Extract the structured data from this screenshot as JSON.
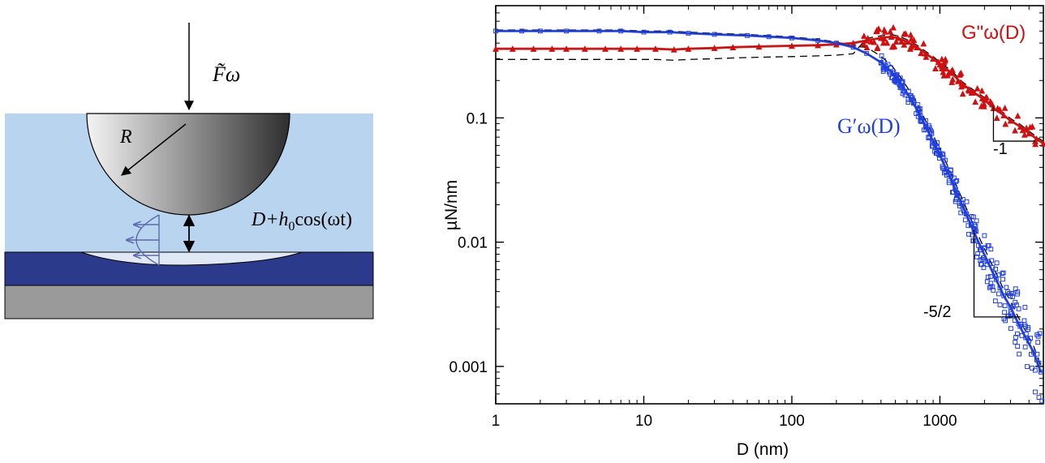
{
  "schematic": {
    "force_label": "F̃ω",
    "radius_label": "R",
    "gap_label_prefix": "D+h",
    "gap_label_sub": "0",
    "gap_label_suffix": "cos(ωt)",
    "colors": {
      "liquid": "#b9d4ef",
      "film": "#2c3a8c",
      "substrate": "#9a9a9a",
      "flow_arrows": "#5a6aa8"
    }
  },
  "chart_data": {
    "type": "scatter",
    "xscale": "log",
    "yscale": "log",
    "xlim": [
      1,
      5000
    ],
    "ylim": [
      0.0005,
      0.8
    ],
    "xticks": [
      1,
      10,
      100,
      1000
    ],
    "xtick_labels": [
      "1",
      "10",
      "100",
      "1000"
    ],
    "yticks": [
      0.001,
      0.01,
      0.1
    ],
    "ytick_labels": [
      "0.001",
      "0.01",
      "0.1"
    ],
    "xlabel": "D (nm)",
    "ylabel": "µN/nm",
    "grid": false,
    "series": [
      {
        "name": "G''ω(D)",
        "color": "#d01010",
        "marker": "triangle",
        "points": [
          [
            1,
            0.36
          ],
          [
            1.3,
            0.36
          ],
          [
            1.8,
            0.36
          ],
          [
            2.4,
            0.36
          ],
          [
            3,
            0.36
          ],
          [
            4,
            0.36
          ],
          [
            5.5,
            0.36
          ],
          [
            7,
            0.36
          ],
          [
            9,
            0.36
          ],
          [
            12,
            0.36
          ],
          [
            16,
            0.355
          ],
          [
            20,
            0.36
          ],
          [
            30,
            0.365
          ],
          [
            40,
            0.37
          ],
          [
            60,
            0.375
          ],
          [
            100,
            0.38
          ],
          [
            150,
            0.385
          ],
          [
            200,
            0.39
          ],
          [
            260,
            0.4
          ],
          [
            320,
            0.42
          ],
          [
            400,
            0.44
          ],
          [
            470,
            0.45
          ],
          [
            520,
            0.44
          ],
          [
            600,
            0.41
          ],
          [
            700,
            0.37
          ],
          [
            800,
            0.33
          ],
          [
            900,
            0.3
          ],
          [
            1000,
            0.27
          ],
          [
            1200,
            0.23
          ],
          [
            1400,
            0.19
          ],
          [
            1700,
            0.16
          ],
          [
            2000,
            0.14
          ],
          [
            2300,
            0.12
          ],
          [
            2700,
            0.105
          ],
          [
            3000,
            0.095
          ],
          [
            3500,
            0.085
          ],
          [
            4000,
            0.075
          ],
          [
            4500,
            0.068
          ],
          [
            5000,
            0.062
          ]
        ]
      },
      {
        "name": "G'ω(D)",
        "color": "#1f3fe0",
        "marker": "square",
        "points": [
          [
            1,
            0.5
          ],
          [
            1.5,
            0.5
          ],
          [
            2,
            0.5
          ],
          [
            3,
            0.5
          ],
          [
            5,
            0.5
          ],
          [
            7,
            0.5
          ],
          [
            10,
            0.49
          ],
          [
            15,
            0.49
          ],
          [
            20,
            0.48
          ],
          [
            30,
            0.47
          ],
          [
            50,
            0.46
          ],
          [
            70,
            0.45
          ],
          [
            100,
            0.44
          ],
          [
            150,
            0.42
          ],
          [
            200,
            0.4
          ],
          [
            260,
            0.37
          ],
          [
            320,
            0.33
          ],
          [
            400,
            0.28
          ],
          [
            480,
            0.23
          ],
          [
            560,
            0.18
          ],
          [
            640,
            0.14
          ],
          [
            720,
            0.11
          ],
          [
            800,
            0.085
          ],
          [
            900,
            0.065
          ],
          [
            1000,
            0.05
          ],
          [
            1150,
            0.035
          ],
          [
            1300,
            0.025
          ],
          [
            1500,
            0.017
          ],
          [
            1700,
            0.012
          ],
          [
            1900,
            0.009
          ],
          [
            2100,
            0.007
          ],
          [
            2400,
            0.005
          ],
          [
            2700,
            0.0037
          ],
          [
            3000,
            0.003
          ],
          [
            3400,
            0.0022
          ],
          [
            3800,
            0.0017
          ],
          [
            4300,
            0.0013
          ],
          [
            4800,
            0.0009
          ]
        ]
      }
    ],
    "series_labels": {
      "loss": "G\"ω(D)",
      "storage": "G′ω(D)"
    },
    "slope_labels": [
      "-1",
      "-5/2"
    ]
  }
}
